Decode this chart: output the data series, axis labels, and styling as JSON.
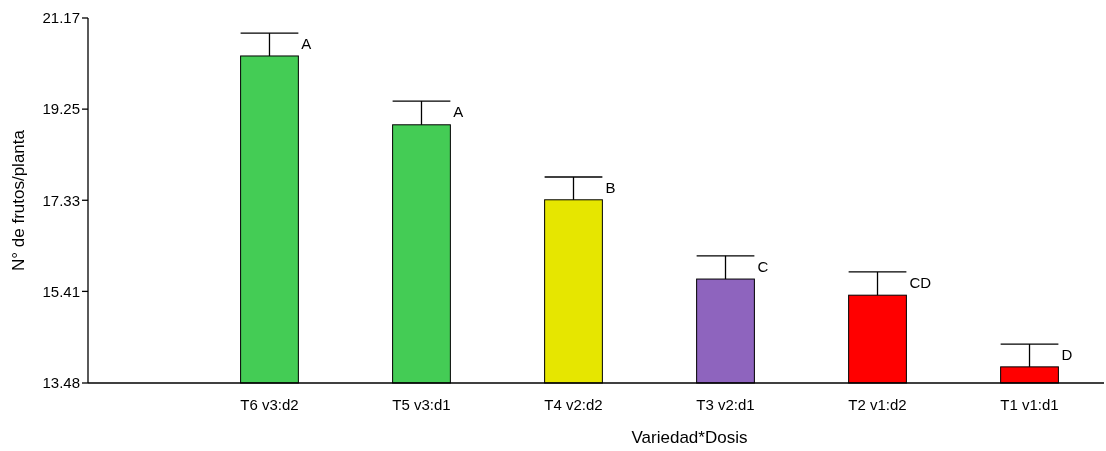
{
  "chart_data": {
    "type": "bar",
    "xlabel": "Variedad*Dosis",
    "ylabel": "N° de frutos/planta",
    "categories": [
      "T6 v3:d2",
      "T5 v3:d1",
      "T4 v2:d2",
      "T3 v2:d1",
      "T2 v1:d2",
      "T1 v1:d1"
    ],
    "values": [
      20.37,
      18.92,
      17.34,
      15.67,
      15.33,
      13.82
    ],
    "colors": [
      "#44cc55",
      "#44cc55",
      "#e6e600",
      "#8e64be",
      "#ff0000",
      "#ff0000"
    ],
    "errors": [
      [
        20.37,
        20.85
      ],
      [
        18.92,
        19.42
      ],
      [
        17.34,
        17.82
      ],
      [
        15.67,
        16.16
      ],
      [
        15.33,
        15.82
      ],
      [
        13.82,
        14.3
      ]
    ],
    "ylim": [
      13.48,
      21.17
    ],
    "yticks": [
      13.48,
      15.41,
      17.33,
      19.25,
      21.17
    ],
    "grid": false,
    "annotations": [
      {
        "text": "A",
        "x": "T6 v3:d2",
        "y": 20.85
      },
      {
        "text": "A",
        "x": "T5 v3:d1",
        "y": 19.42
      },
      {
        "text": "B",
        "x": "T4 v2:d2",
        "y": 17.82
      },
      {
        "text": "C",
        "x": "T3 v2:d1",
        "y": 16.16
      },
      {
        "text": "CD",
        "x": "T2 v1:d2",
        "y": 15.82
      },
      {
        "text": "D",
        "x": "T1 v1:d1",
        "y": 14.3
      }
    ]
  }
}
